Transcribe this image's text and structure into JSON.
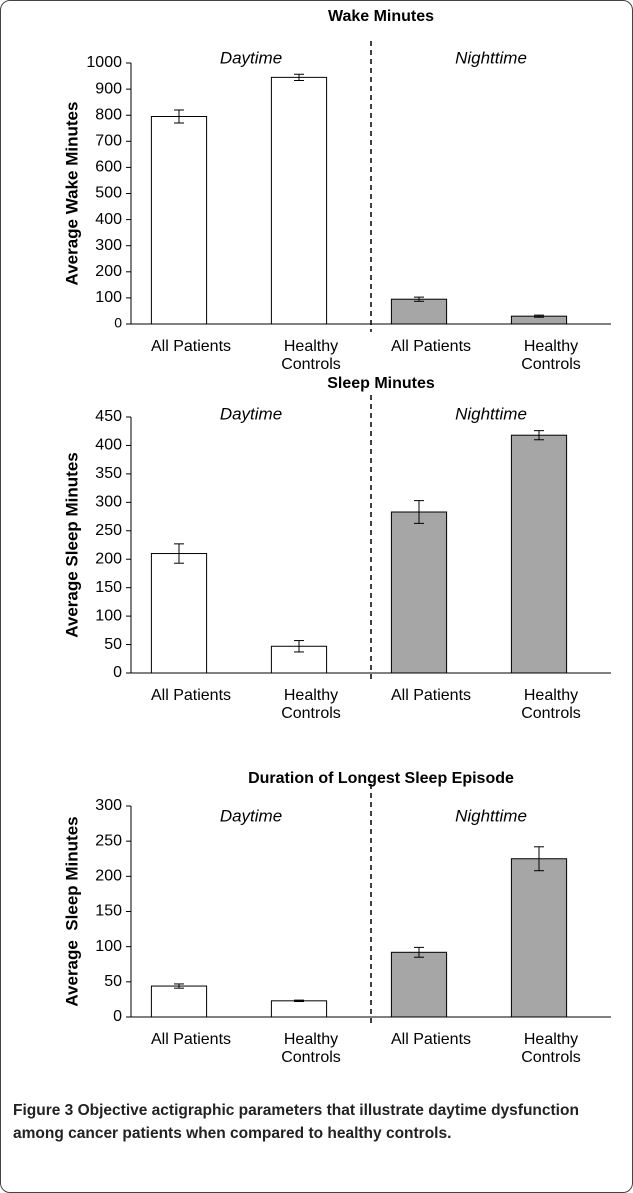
{
  "chart_data": [
    {
      "type": "bar",
      "title": "Wake Minutes",
      "ylabel": "Average Wake Minutes",
      "groups": [
        "Daytime",
        "Nighttime"
      ],
      "categories": [
        "All Patients",
        "Healthy Controls",
        "All Patients",
        "Healthy Controls"
      ],
      "values": [
        795,
        945,
        95,
        30
      ],
      "errors": [
        25,
        12,
        8,
        4
      ],
      "colors": [
        "#ffffff",
        "#ffffff",
        "#a6a6a6",
        "#a6a6a6"
      ],
      "ylim": [
        0,
        1000
      ],
      "yticks": [
        0,
        100,
        200,
        300,
        400,
        500,
        600,
        700,
        800,
        900,
        1000
      ]
    },
    {
      "type": "bar",
      "title": "Sleep Minutes",
      "ylabel": "Average Sleep Minutes",
      "groups": [
        "Daytime",
        "Nighttime"
      ],
      "categories": [
        "All Patients",
        "Healthy Controls",
        "All Patients",
        "Healthy Controls"
      ],
      "values": [
        210,
        47,
        283,
        418
      ],
      "errors": [
        17,
        10,
        20,
        8
      ],
      "colors": [
        "#ffffff",
        "#ffffff",
        "#a6a6a6",
        "#a6a6a6"
      ],
      "ylim": [
        0,
        450
      ],
      "yticks": [
        0,
        50,
        100,
        150,
        200,
        250,
        300,
        350,
        400,
        450
      ]
    },
    {
      "type": "bar",
      "title": "Duration of Longest Sleep Episode",
      "ylabel": "Average  Sleep Minutes",
      "groups": [
        "Daytime",
        "Nighttime"
      ],
      "categories": [
        "All Patients",
        "Healthy Controls",
        "All Patients",
        "Healthy Controls"
      ],
      "values": [
        44,
        23,
        92,
        225
      ],
      "errors": [
        3,
        1,
        7,
        17
      ],
      "colors": [
        "#ffffff",
        "#ffffff",
        "#a6a6a6",
        "#a6a6a6"
      ],
      "ylim": [
        0,
        300
      ],
      "yticks": [
        0,
        50,
        100,
        150,
        200,
        250,
        300
      ]
    }
  ],
  "caption": "Figure 3 Objective actigraphic parameters that illustrate daytime dysfunction among cancer patients when compared to healthy controls."
}
